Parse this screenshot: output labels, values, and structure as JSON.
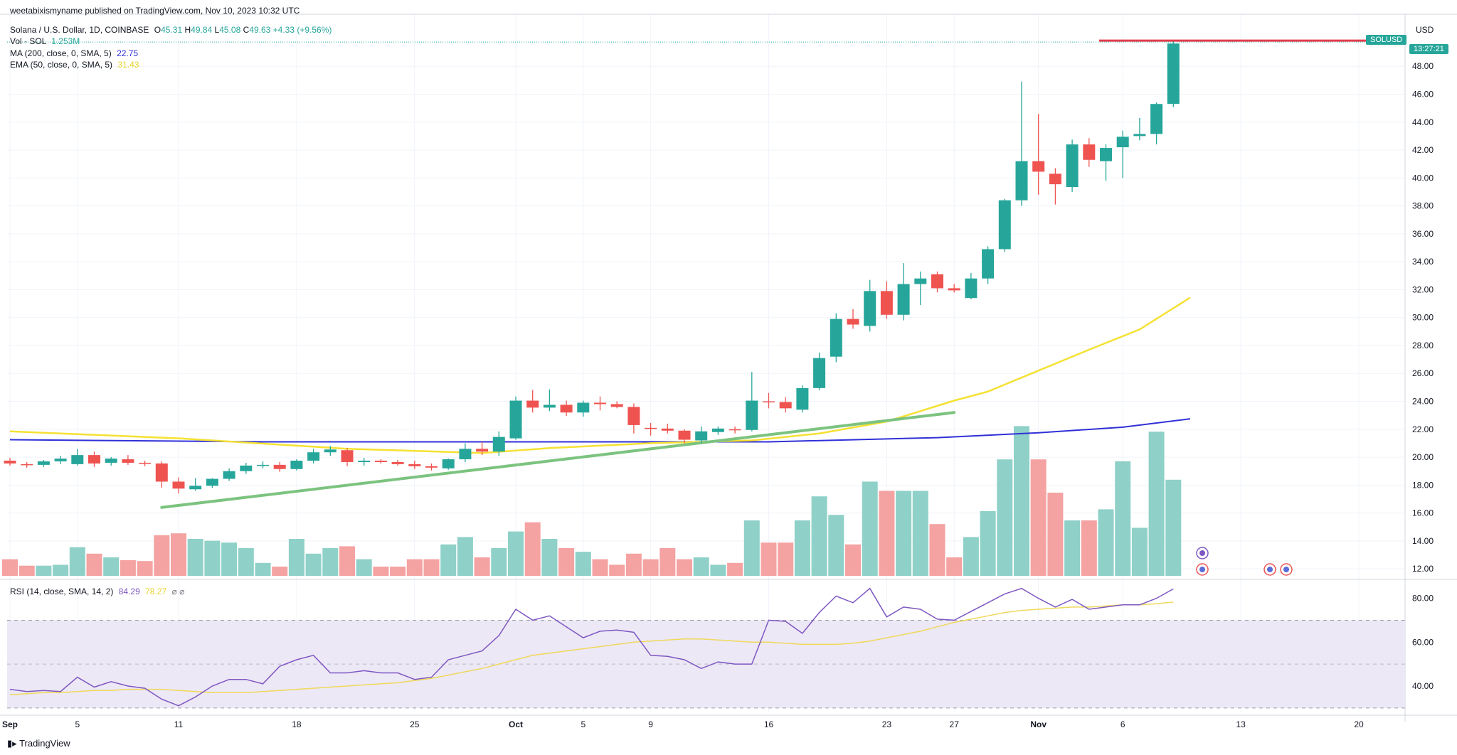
{
  "publish_line": "weetabixismyname published on TradingView.com, Nov 10, 2023 10:32 UTC",
  "title": "Solana / U.S. Dollar, 1D, COINBASE",
  "ohlc": {
    "o_label": "O",
    "o": "45.31",
    "h_label": "H",
    "h": "49.84",
    "l_label": "L",
    "l": "45.08",
    "c_label": "C",
    "c": "49.63",
    "change": "+4.33 (+9.56%)"
  },
  "volume_legend": {
    "label": "Vol · SOL",
    "value": "1.253M"
  },
  "ma_legend": {
    "label": "MA (200, close, 0, SMA, 5)",
    "value": "22.75"
  },
  "ema_legend": {
    "label": "EMA (50, close, 0, SMA, 5)",
    "value": "31.43"
  },
  "rsi_legend": {
    "label": "RSI (14, close, SMA, 14, 2)",
    "value1": "84.29",
    "value2": "78.27"
  },
  "currency": "USD",
  "symbol_tag": "SOLUSD",
  "countdown": "13:27:21",
  "branding": "TradingView",
  "colors": {
    "up": "#26a69a",
    "down": "#ef5350",
    "vol_up": "#8fd1c8",
    "vol_down": "#f4a3a2",
    "ma200": "#3030d8",
    "ema50": "#f5e133",
    "trendline": "#7cc37f",
    "resistance": "#e33b4a",
    "rsi": "#7e57c2",
    "rsi_ma": "#f0d85a",
    "rsi_band": "#ece8f6"
  },
  "chart_data": {
    "type": "candlestick",
    "title": "Solana / U.S. Dollar, 1D, COINBASE",
    "price_axis": {
      "ticks": [
        "12.00",
        "14.00",
        "16.00",
        "18.00",
        "20.00",
        "22.00",
        "24.00",
        "26.00",
        "28.00",
        "30.00",
        "32.00",
        "34.00",
        "36.00",
        "38.00",
        "40.00",
        "42.00",
        "44.00",
        "46.00",
        "48.00"
      ],
      "range": [
        11.5,
        50.2
      ]
    },
    "x_axis": {
      "ticks": [
        {
          "label": "Sep",
          "index": 0,
          "bold": true
        },
        {
          "label": "5",
          "index": 4
        },
        {
          "label": "11",
          "index": 10
        },
        {
          "label": "18",
          "index": 17
        },
        {
          "label": "25",
          "index": 24
        },
        {
          "label": "Oct",
          "index": 30,
          "bold": true
        },
        {
          "label": "5",
          "index": 34
        },
        {
          "label": "9",
          "index": 38
        },
        {
          "label": "16",
          "index": 45
        },
        {
          "label": "23",
          "index": 52
        },
        {
          "label": "27",
          "index": 56
        },
        {
          "label": "Nov",
          "index": 61,
          "bold": true
        },
        {
          "label": "6",
          "index": 66
        },
        {
          "label": "13",
          "index": 73
        },
        {
          "label": "20",
          "index": 80
        }
      ]
    },
    "candles": [
      [
        19.75,
        19.95,
        19.4,
        19.55,
        0.9
      ],
      [
        19.5,
        19.65,
        19.25,
        19.45,
        0.55
      ],
      [
        19.45,
        19.8,
        19.3,
        19.7,
        0.55
      ],
      [
        19.7,
        20.1,
        19.5,
        19.9,
        0.6
      ],
      [
        19.5,
        20.6,
        19.4,
        20.15,
        1.55
      ],
      [
        20.15,
        20.4,
        19.3,
        19.55,
        1.2
      ],
      [
        19.6,
        20.0,
        19.4,
        19.9,
        1.0
      ],
      [
        19.85,
        20.15,
        19.45,
        19.6,
        0.85
      ],
      [
        19.6,
        19.75,
        19.35,
        19.55,
        0.8
      ],
      [
        19.55,
        19.7,
        17.8,
        18.25,
        2.2
      ],
      [
        18.25,
        18.55,
        17.4,
        17.75,
        2.3
      ],
      [
        17.7,
        18.5,
        17.6,
        17.95,
        2.0
      ],
      [
        17.95,
        18.5,
        17.8,
        18.45,
        1.9
      ],
      [
        18.45,
        19.2,
        18.3,
        19.0,
        1.8
      ],
      [
        19.0,
        19.6,
        18.8,
        19.4,
        1.5
      ],
      [
        19.4,
        19.7,
        19.2,
        19.45,
        0.7
      ],
      [
        19.45,
        19.65,
        18.95,
        19.15,
        0.5
      ],
      [
        19.15,
        19.85,
        19.05,
        19.75,
        2.0
      ],
      [
        19.75,
        20.6,
        19.55,
        20.35,
        1.2
      ],
      [
        20.35,
        20.8,
        20.1,
        20.55,
        1.5
      ],
      [
        20.5,
        20.65,
        19.35,
        19.65,
        1.6
      ],
      [
        19.65,
        19.95,
        19.4,
        19.75,
        0.9
      ],
      [
        19.75,
        19.85,
        19.55,
        19.65,
        0.5
      ],
      [
        19.65,
        19.8,
        19.4,
        19.5,
        0.5
      ],
      [
        19.5,
        19.75,
        19.15,
        19.35,
        0.9
      ],
      [
        19.35,
        19.55,
        19.05,
        19.25,
        0.9
      ],
      [
        19.2,
        19.9,
        19.1,
        19.85,
        1.7
      ],
      [
        19.85,
        21.0,
        19.65,
        20.6,
        2.1
      ],
      [
        20.6,
        21.1,
        20.15,
        20.4,
        1.0
      ],
      [
        20.4,
        21.85,
        20.1,
        21.45,
        1.5
      ],
      [
        21.35,
        24.35,
        21.25,
        24.05,
        2.4
      ],
      [
        24.05,
        24.8,
        23.2,
        23.55,
        2.9
      ],
      [
        23.55,
        24.85,
        23.3,
        23.75,
        2.0
      ],
      [
        23.75,
        24.05,
        22.95,
        23.2,
        1.5
      ],
      [
        23.2,
        24.05,
        22.9,
        23.9,
        1.3
      ],
      [
        23.9,
        24.35,
        23.35,
        23.8,
        0.9
      ],
      [
        23.8,
        24.0,
        23.5,
        23.6,
        0.6
      ],
      [
        23.6,
        23.85,
        21.7,
        22.3,
        1.2
      ],
      [
        22.1,
        22.45,
        21.55,
        22.05,
        0.9
      ],
      [
        22.05,
        22.4,
        21.7,
        21.9,
        1.5
      ],
      [
        21.9,
        22.0,
        21.0,
        21.25,
        0.9
      ],
      [
        21.2,
        22.2,
        21.0,
        21.85,
        1.0
      ],
      [
        21.8,
        22.2,
        21.6,
        22.05,
        0.6
      ],
      [
        22.0,
        22.2,
        21.7,
        21.95,
        0.7
      ],
      [
        21.95,
        26.1,
        21.85,
        24.05,
        3.0
      ],
      [
        24.0,
        24.6,
        23.5,
        23.95,
        1.8
      ],
      [
        23.95,
        24.3,
        23.2,
        23.5,
        1.8
      ],
      [
        23.4,
        25.15,
        23.2,
        24.95,
        3.0
      ],
      [
        24.95,
        27.5,
        24.8,
        27.1,
        4.3
      ],
      [
        27.2,
        30.3,
        26.8,
        29.9,
        3.3
      ],
      [
        29.9,
        30.6,
        29.2,
        29.5,
        1.7
      ],
      [
        29.4,
        32.7,
        29.0,
        31.9,
        5.1
      ],
      [
        31.9,
        32.6,
        29.9,
        30.2,
        4.6
      ],
      [
        30.2,
        33.9,
        29.8,
        32.4,
        4.6
      ],
      [
        32.4,
        33.3,
        30.9,
        32.8,
        4.6
      ],
      [
        33.1,
        33.3,
        31.8,
        32.1,
        2.8
      ],
      [
        32.1,
        32.4,
        31.8,
        31.95,
        1.0
      ],
      [
        31.4,
        33.2,
        31.3,
        32.8,
        2.1
      ],
      [
        32.8,
        35.1,
        32.4,
        34.9,
        3.5
      ],
      [
        34.9,
        38.5,
        34.7,
        38.4,
        6.3
      ],
      [
        38.4,
        46.9,
        38.0,
        41.2,
        8.1
      ],
      [
        41.2,
        44.6,
        38.8,
        40.45,
        6.3
      ],
      [
        40.3,
        40.7,
        38.1,
        39.55,
        4.5
      ],
      [
        39.35,
        42.75,
        39.0,
        42.4,
        3.0
      ],
      [
        42.4,
        42.85,
        40.8,
        41.3,
        3.0
      ],
      [
        41.2,
        42.4,
        39.8,
        42.15,
        3.6
      ],
      [
        42.2,
        43.4,
        40.0,
        42.95,
        6.2
      ],
      [
        43.0,
        44.3,
        42.7,
        43.15,
        2.6
      ],
      [
        43.15,
        45.4,
        42.4,
        45.3,
        7.8
      ],
      [
        45.31,
        49.84,
        45.08,
        49.63,
        5.2
      ]
    ],
    "ma200": [
      [
        0,
        21.25
      ],
      [
        15,
        21.1
      ],
      [
        30,
        21.1
      ],
      [
        45,
        21.1
      ],
      [
        55,
        21.4
      ],
      [
        61,
        21.75
      ],
      [
        66,
        22.15
      ],
      [
        70,
        22.75
      ]
    ],
    "ema50": [
      [
        0,
        21.85
      ],
      [
        10,
        21.35
      ],
      [
        20,
        20.6
      ],
      [
        28,
        20.3
      ],
      [
        32,
        20.65
      ],
      [
        38,
        21.0
      ],
      [
        44,
        21.2
      ],
      [
        48,
        21.7
      ],
      [
        52,
        22.55
      ],
      [
        56,
        24.05
      ],
      [
        58,
        24.7
      ],
      [
        61,
        26.2
      ],
      [
        64,
        27.7
      ],
      [
        67,
        29.15
      ],
      [
        70,
        31.43
      ]
    ],
    "trendline": {
      "from": [
        9,
        16.4
      ],
      "to": [
        56,
        23.2
      ]
    },
    "resistance": {
      "from": [
        65,
        49.84
      ],
      "to": [
        83,
        49.84
      ]
    },
    "rsi": {
      "ticks": [
        "40.00",
        "60.00",
        "80.00"
      ],
      "bands": [
        30,
        50,
        70
      ],
      "range": [
        28,
        87
      ],
      "values": [
        38.5,
        37.5,
        38,
        37.5,
        44,
        39.5,
        42,
        40,
        39,
        34,
        31,
        35,
        40,
        43,
        43,
        41,
        49,
        52,
        54,
        46,
        46,
        47,
        46,
        46,
        43,
        44,
        52,
        54,
        56,
        63,
        75,
        70,
        72,
        67,
        62,
        65,
        65.5,
        64.5,
        54,
        53.5,
        52,
        48,
        51,
        50,
        50,
        70,
        69.5,
        64,
        73.5,
        81,
        78,
        84.5,
        71.5,
        76,
        75,
        70.5,
        70,
        74,
        78,
        82,
        84.5,
        80,
        76,
        79.5,
        75,
        76,
        77,
        77,
        80,
        84.29
      ],
      "ma": [
        36,
        36.5,
        37,
        37,
        37.5,
        38,
        38,
        38.5,
        38.5,
        38.5,
        38,
        37.5,
        37,
        37,
        37,
        37.5,
        38,
        38.5,
        39,
        39.5,
        40,
        40.5,
        41,
        41.5,
        42.5,
        43.5,
        45,
        46.5,
        48,
        50,
        52,
        54,
        55,
        56,
        57,
        58,
        59,
        60,
        60.5,
        61,
        61.5,
        61.5,
        61,
        60.5,
        60,
        60,
        59.5,
        59,
        59,
        59,
        59.5,
        60.5,
        62,
        63.5,
        65,
        67,
        69,
        70.5,
        72,
        73.5,
        74.5,
        75,
        75.5,
        76,
        76,
        76.5,
        77,
        77,
        77.5,
        78.27
      ]
    }
  }
}
